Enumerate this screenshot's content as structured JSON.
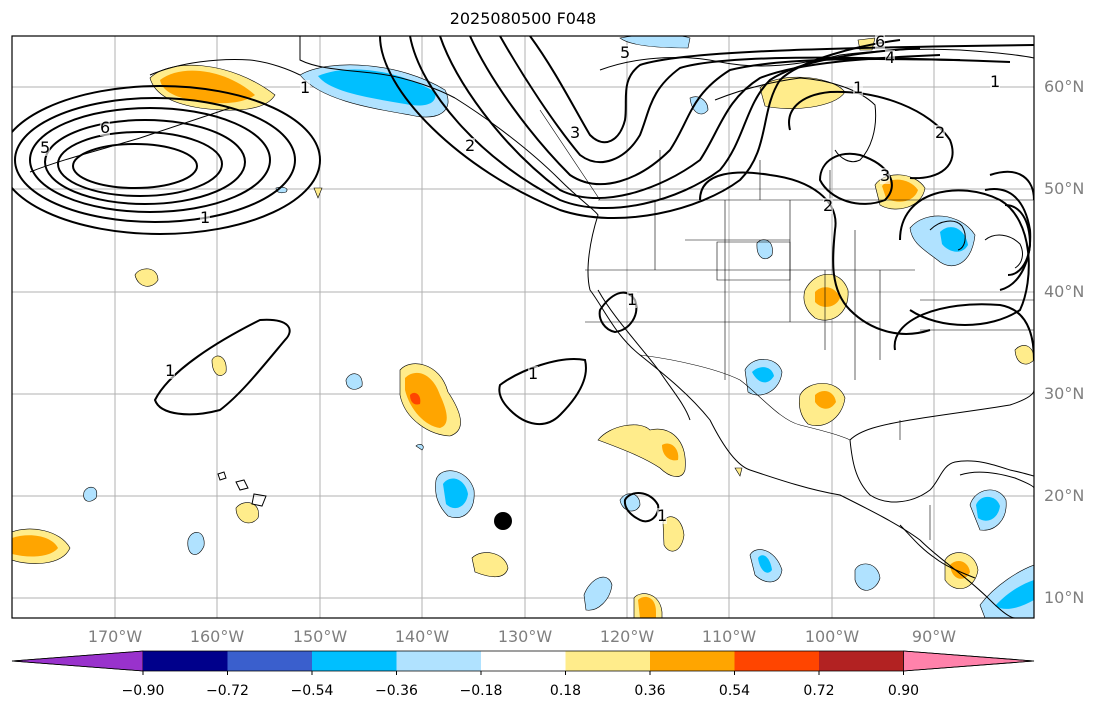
{
  "title": "2025080500 F048",
  "map": {
    "lat_labels": [
      "60°N",
      "50°N",
      "40°N",
      "30°N",
      "20°N",
      "10°N"
    ],
    "lon_labels": [
      "170°W",
      "160°W",
      "150°W",
      "140°W",
      "130°W",
      "120°W",
      "110°W",
      "100°W",
      "90°W"
    ],
    "contour_labels": [
      "5",
      "6",
      "1",
      "1",
      "2",
      "3",
      "5",
      "6",
      "4",
      "1",
      "1",
      "2",
      "2",
      "3",
      "1",
      "1",
      "1",
      "1"
    ],
    "marker": "black-dot"
  },
  "colorbar": {
    "labels": [
      "−0.90",
      "−0.72",
      "−0.54",
      "−0.36",
      "−0.18",
      "0.18",
      "0.36",
      "0.54",
      "0.72",
      "0.90"
    ],
    "colors": [
      "#9932cc",
      "#00008b",
      "#3a5fcd",
      "#00bfff",
      "#b0e2ff",
      "#ffffff",
      "#ffec8b",
      "#ffa500",
      "#ff4500",
      "#b22222",
      "#ff82ab"
    ]
  }
}
